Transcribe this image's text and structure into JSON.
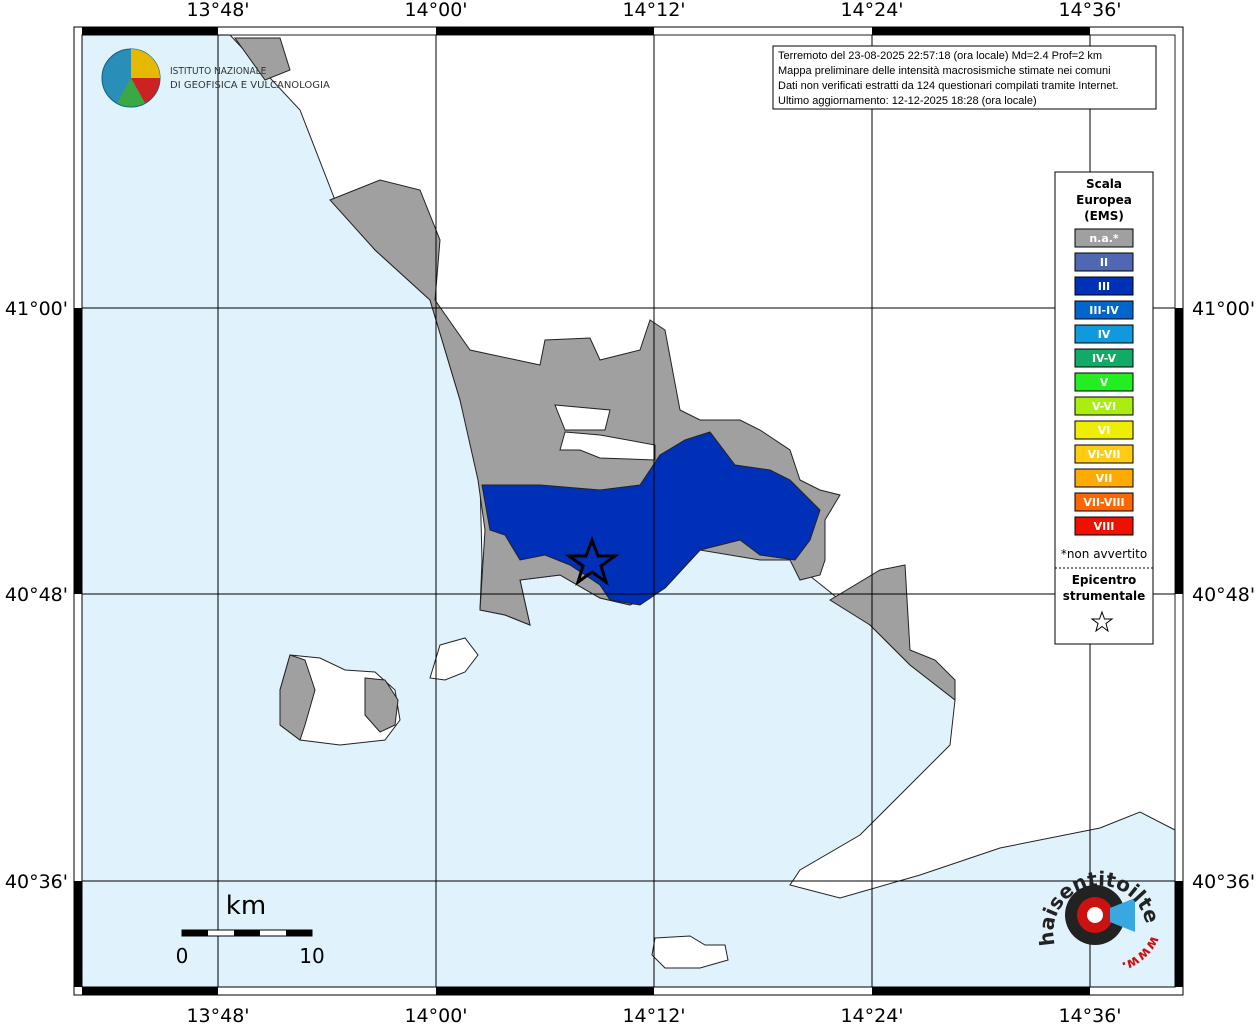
{
  "map": {
    "lon_labels": [
      "13°48'",
      "14°00'",
      "14°12'",
      "14°24'",
      "14°36'"
    ],
    "lat_labels": [
      "41°00'",
      "40°48'",
      "40°36'"
    ],
    "info": [
      "Terremoto del 23-08-2025 22:57:18 (ora locale) Md=2.4 Prof=2 km",
      "Mappa preliminare delle intensità macrosismiche stimate nei comuni",
      "Dati non verificati estratti da 124 questionari compilati tramite Internet.",
      "Ultimo aggiornamento: 12-12-2025 18:28 (ora locale)"
    ],
    "logo": [
      "ISTITUTO NAZIONALE",
      "DI GEOFISICA E VULCANOLOGIA"
    ],
    "legend": {
      "title": [
        "Scala",
        "Europea",
        "(EMS)"
      ],
      "items": [
        {
          "label": "n.a.*",
          "color": "#a0a0a0"
        },
        {
          "label": "II",
          "color": "#5068b4"
        },
        {
          "label": "III",
          "color": "#0030b8"
        },
        {
          "label": "III-IV",
          "color": "#0066cc"
        },
        {
          "label": "IV",
          "color": "#1199dd"
        },
        {
          "label": "IV-V",
          "color": "#11aa66"
        },
        {
          "label": "V",
          "color": "#22ee22"
        },
        {
          "label": "V-VI",
          "color": "#aaee11"
        },
        {
          "label": "VI",
          "color": "#eeee00"
        },
        {
          "label": "VI-VII",
          "color": "#ffcc11"
        },
        {
          "label": "VII",
          "color": "#ffaa00"
        },
        {
          "label": "VII-VIII",
          "color": "#ff6600"
        },
        {
          "label": "VIII",
          "color": "#ee1100"
        }
      ],
      "note": "*non avvertito",
      "epicenter": [
        "Epicentro",
        "strumentale"
      ]
    },
    "scale": {
      "unit": "km",
      "start": 0,
      "end": 10
    },
    "site_logo": [
      "haisentitoilterremoto.it",
      "www."
    ]
  }
}
